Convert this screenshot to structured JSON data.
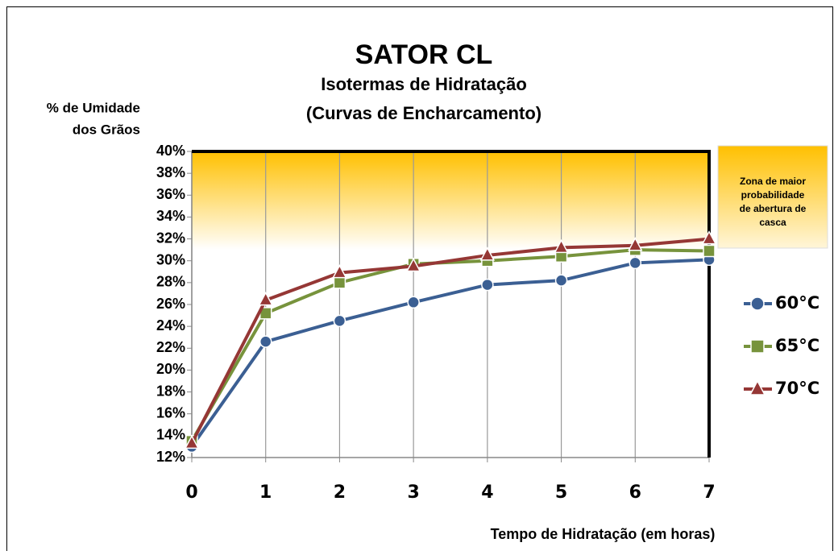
{
  "chart_data": {
    "type": "line",
    "title": "SATOR CL",
    "subtitle": [
      "Isotermas de Hidratação",
      "(Curvas de Encharcamento)"
    ],
    "y_label": [
      "% de Umidade",
      "dos Grãos"
    ],
    "x_label": "Tempo de Hidratação (em horas)",
    "annotation": [
      "Zona de maior",
      "probabilidade",
      "de abertura de",
      "casca"
    ],
    "highlight_band": {
      "from": 31,
      "to": 40,
      "color": "#ffc000"
    },
    "x": [
      0,
      1,
      2,
      3,
      4,
      5,
      6,
      7
    ],
    "xlim": [
      0,
      7
    ],
    "xticks": [
      0,
      1,
      2,
      3,
      4,
      5,
      6,
      7
    ],
    "ylim": [
      12,
      40
    ],
    "yticks": [
      {
        "value": 12,
        "label": "12%"
      },
      {
        "value": 14,
        "label": "14%"
      },
      {
        "value": 16,
        "label": "16%"
      },
      {
        "value": 18,
        "label": "18%"
      },
      {
        "value": 20,
        "label": "20%"
      },
      {
        "value": 22,
        "label": "22%"
      },
      {
        "value": 24,
        "label": "24%"
      },
      {
        "value": 26,
        "label": "26%"
      },
      {
        "value": 28,
        "label": "28%"
      },
      {
        "value": 30,
        "label": "30%"
      },
      {
        "value": 32,
        "label": "32%"
      },
      {
        "value": 34,
        "label": "34%"
      },
      {
        "value": 36,
        "label": "36%"
      },
      {
        "value": 38,
        "label": "38%"
      },
      {
        "value": 40,
        "label": "40%"
      }
    ],
    "grid": "x",
    "legend": "right",
    "series": [
      {
        "name": "60°C",
        "color": "#3b5f93",
        "marker": "circle",
        "values": [
          13,
          22.6,
          24.5,
          26.2,
          27.8,
          28.2,
          29.8,
          30.1
        ]
      },
      {
        "name": "65°C",
        "color": "#77933c",
        "marker": "square",
        "values": [
          13.5,
          25.2,
          28,
          29.7,
          30,
          30.4,
          31,
          30.9
        ]
      },
      {
        "name": "70°C",
        "color": "#953735",
        "marker": "triangle",
        "values": [
          13.3,
          26.4,
          28.9,
          29.5,
          30.5,
          31.2,
          31.4,
          32
        ]
      }
    ]
  }
}
